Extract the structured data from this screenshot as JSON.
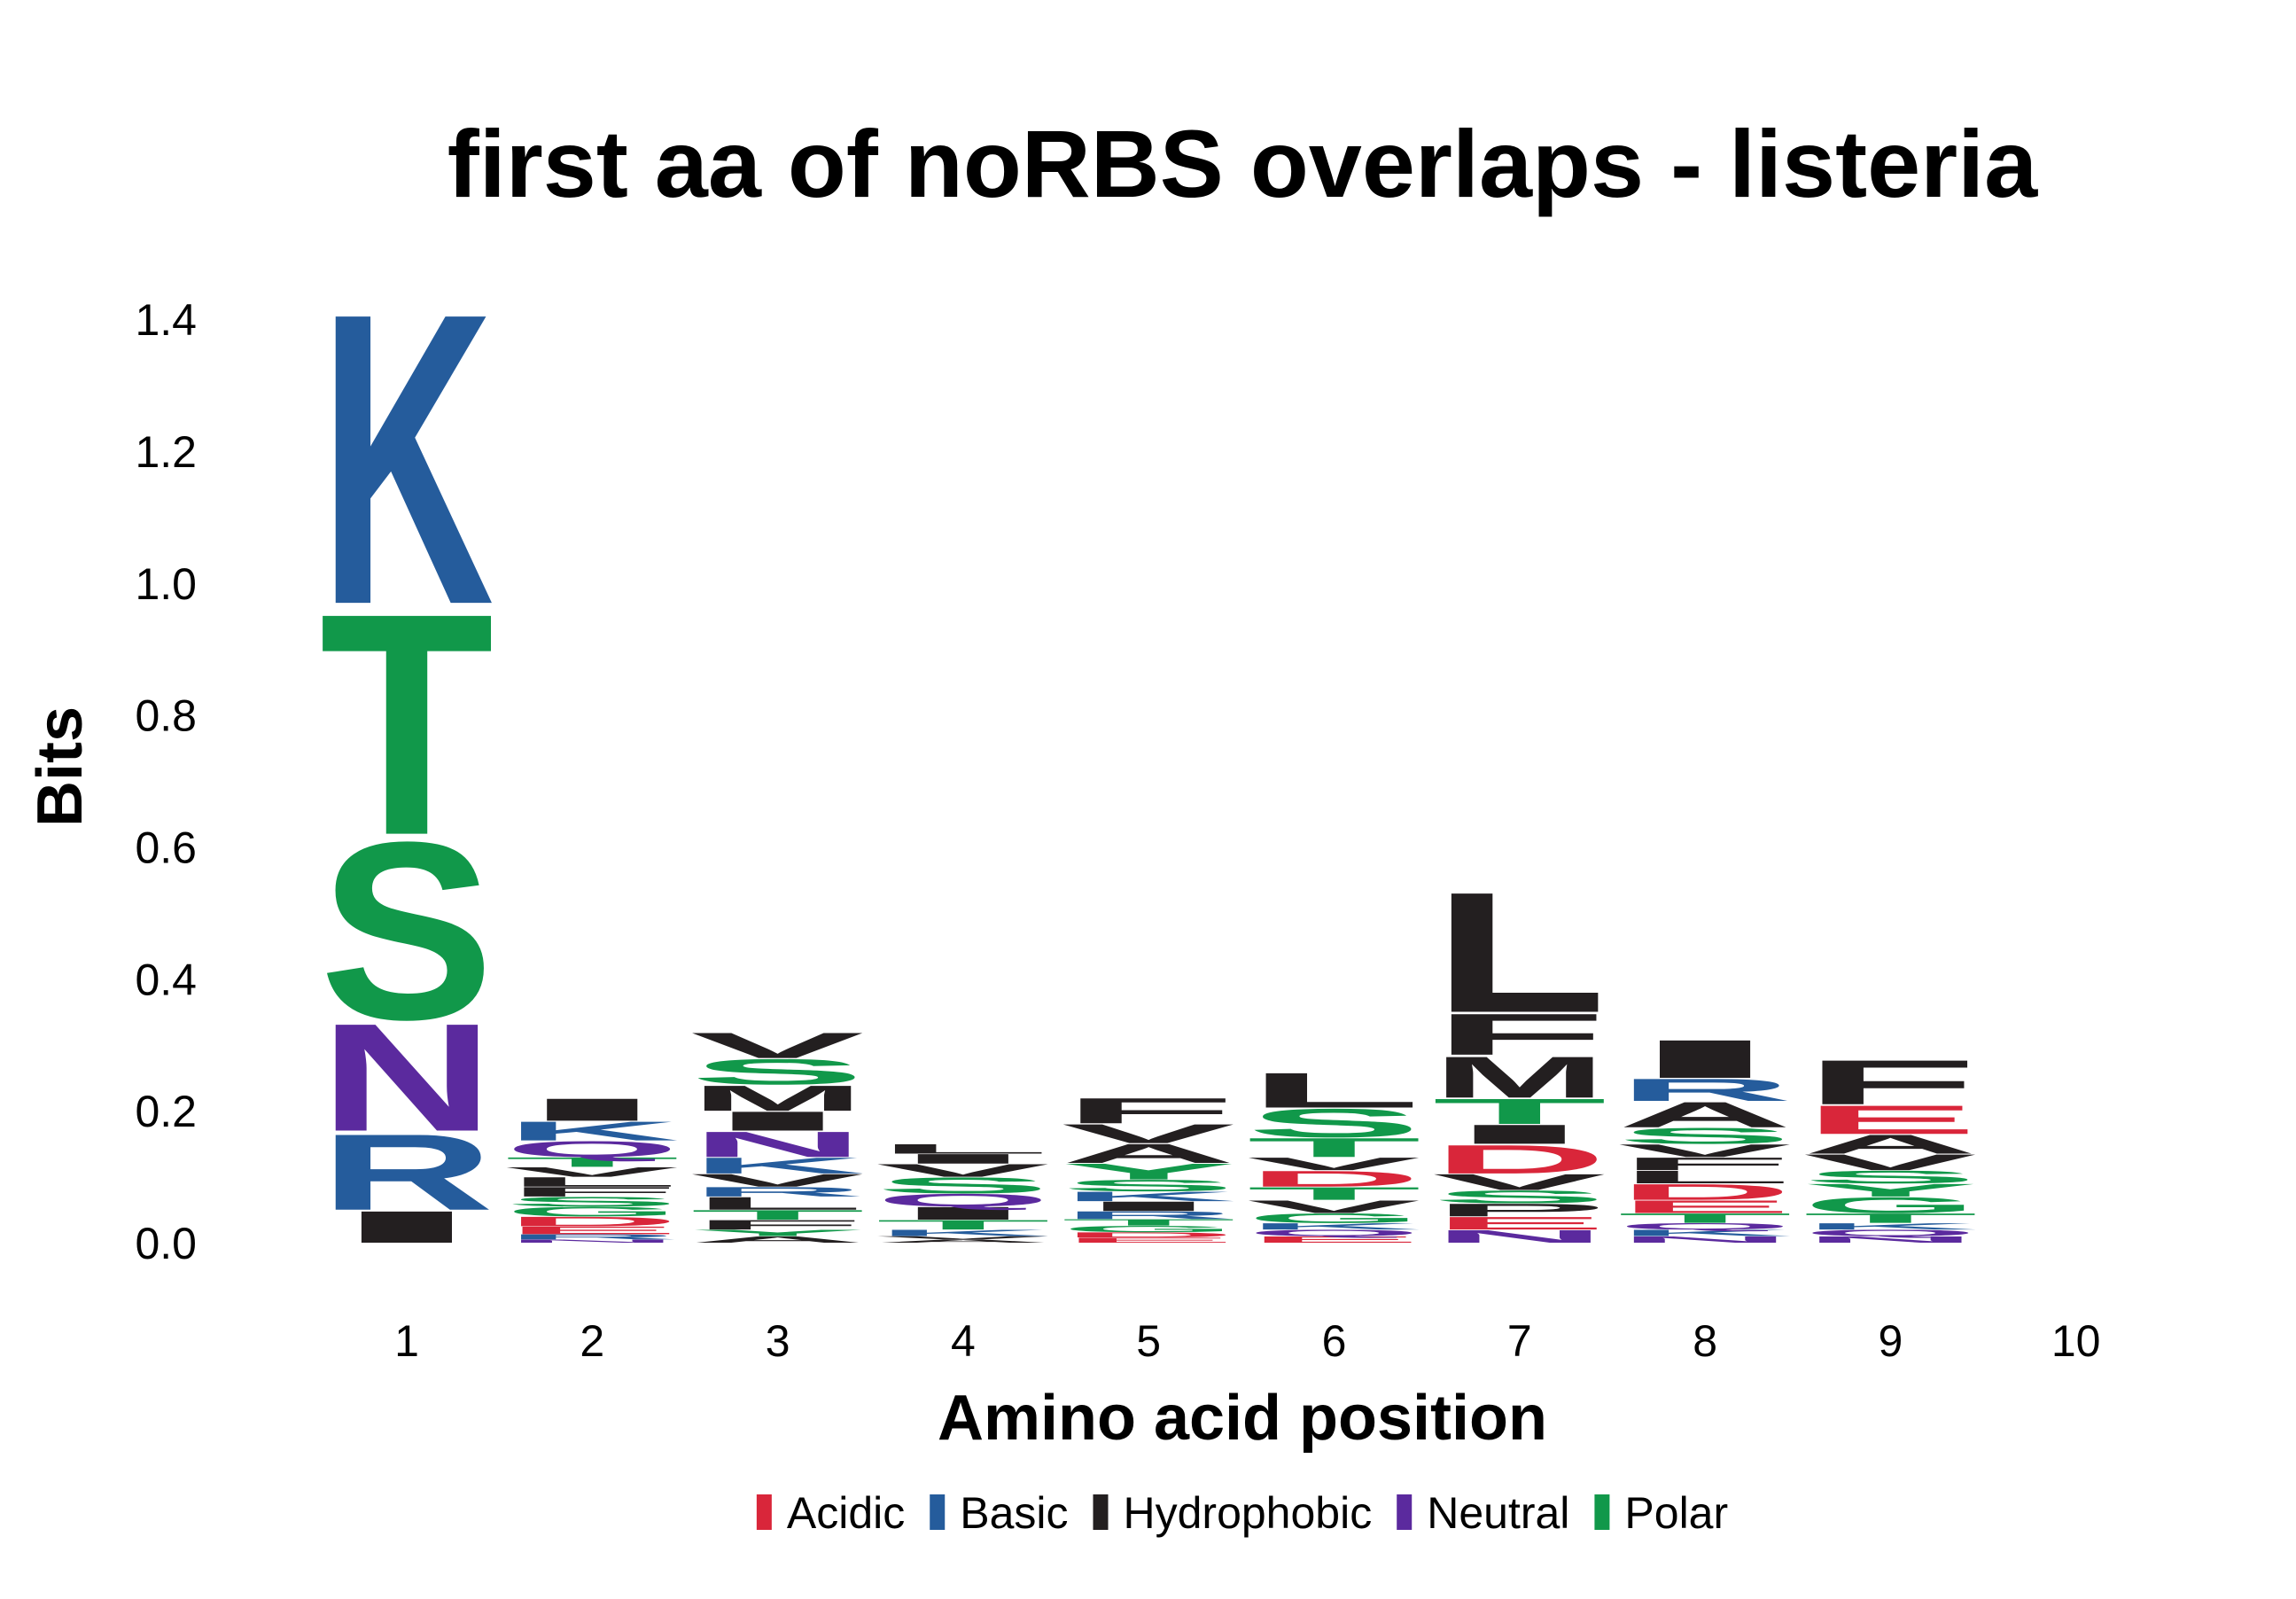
{
  "chart_data": {
    "type": "logo",
    "title": "first aa of noRBS overlaps - listeria",
    "x_label": "Amino acid position",
    "y_label": "Bits",
    "categories": [
      1,
      2,
      3,
      4,
      5,
      6,
      7,
      8,
      9,
      10
    ],
    "ylim": [
      0,
      1.45
    ],
    "yticks": [
      {
        "value": 0,
        "label": "0.0"
      },
      0.2,
      0.4,
      0.6,
      0.8,
      {
        "value": 1,
        "label": "1.0"
      },
      1.2,
      1.4
    ],
    "legend": [
      {
        "name": "Acidic",
        "color": "#d9263a"
      },
      {
        "name": "Basic",
        "color": "#255c9c"
      },
      {
        "name": "Hydrophobic",
        "color": "#231f20"
      },
      {
        "name": "Neutral",
        "color": "#5b2a9e"
      },
      {
        "name": "Polar",
        "color": "#11984a"
      }
    ],
    "stacks": [
      [
        {
          "letter": "I",
          "color": "#231f20",
          "value": 0.05
        },
        {
          "letter": "R",
          "color": "#255c9c",
          "value": 0.12
        },
        {
          "letter": "N",
          "color": "#5b2a9e",
          "value": 0.17
        },
        {
          "letter": "S",
          "color": "#11984a",
          "value": 0.28
        },
        {
          "letter": "T",
          "color": "#11984a",
          "value": 0.35
        },
        {
          "letter": "K",
          "color": "#255c9c",
          "value": 0.46
        }
      ],
      [
        {
          "letter": "N",
          "color": "#5b2a9e",
          "value": 0.005
        },
        {
          "letter": "R",
          "color": "#255c9c",
          "value": 0.008
        },
        {
          "letter": "E",
          "color": "#d9263a",
          "value": 0.012
        },
        {
          "letter": "D",
          "color": "#d9263a",
          "value": 0.015
        },
        {
          "letter": "G",
          "color": "#11984a",
          "value": 0.015
        },
        {
          "letter": "S",
          "color": "#11984a",
          "value": 0.015
        },
        {
          "letter": "F",
          "color": "#231f20",
          "value": 0.015
        },
        {
          "letter": "L",
          "color": "#231f20",
          "value": 0.015
        },
        {
          "letter": "V",
          "color": "#231f20",
          "value": 0.015
        },
        {
          "letter": "T",
          "color": "#11984a",
          "value": 0.015
        },
        {
          "letter": "Q",
          "color": "#5b2a9e",
          "value": 0.025
        },
        {
          "letter": "K",
          "color": "#255c9c",
          "value": 0.03
        },
        {
          "letter": "I",
          "color": "#231f20",
          "value": 0.035
        }
      ],
      [
        {
          "letter": "A",
          "color": "#231f20",
          "value": 0.01
        },
        {
          "letter": "Y",
          "color": "#11984a",
          "value": 0.01
        },
        {
          "letter": "F",
          "color": "#231f20",
          "value": 0.015
        },
        {
          "letter": "T",
          "color": "#11984a",
          "value": 0.015
        },
        {
          "letter": "L",
          "color": "#231f20",
          "value": 0.02
        },
        {
          "letter": "R",
          "color": "#255c9c",
          "value": 0.015
        },
        {
          "letter": "V",
          "color": "#231f20",
          "value": 0.02
        },
        {
          "letter": "K",
          "color": "#255c9c",
          "value": 0.025
        },
        {
          "letter": "N",
          "color": "#5b2a9e",
          "value": 0.04
        },
        {
          "letter": "I",
          "color": "#231f20",
          "value": 0.03
        },
        {
          "letter": "M",
          "color": "#231f20",
          "value": 0.04
        },
        {
          "letter": "S",
          "color": "#11984a",
          "value": 0.04
        },
        {
          "letter": "V",
          "color": "#231f20",
          "value": 0.04
        }
      ],
      [
        {
          "letter": "A",
          "color": "#231f20",
          "value": 0.005
        },
        {
          "letter": "V",
          "color": "#231f20",
          "value": 0.005
        },
        {
          "letter": "K",
          "color": "#255c9c",
          "value": 0.01
        },
        {
          "letter": "T",
          "color": "#11984a",
          "value": 0.015
        },
        {
          "letter": "I",
          "color": "#231f20",
          "value": 0.02
        },
        {
          "letter": "Q",
          "color": "#5b2a9e",
          "value": 0.02
        },
        {
          "letter": "S",
          "color": "#11984a",
          "value": 0.025
        },
        {
          "letter": "V",
          "color": "#231f20",
          "value": 0.02
        },
        {
          "letter": "I",
          "color": "#231f20",
          "value": 0.015
        },
        {
          "letter": "L",
          "color": "#231f20",
          "value": 0.015
        }
      ],
      [
        {
          "letter": "E",
          "color": "#d9263a",
          "value": 0.008
        },
        {
          "letter": "D",
          "color": "#d9263a",
          "value": 0.008
        },
        {
          "letter": "G",
          "color": "#11984a",
          "value": 0.01
        },
        {
          "letter": "T",
          "color": "#11984a",
          "value": 0.01
        },
        {
          "letter": "R",
          "color": "#255c9c",
          "value": 0.012
        },
        {
          "letter": "I",
          "color": "#231f20",
          "value": 0.015
        },
        {
          "letter": "K",
          "color": "#255c9c",
          "value": 0.015
        },
        {
          "letter": "S",
          "color": "#11984a",
          "value": 0.018
        },
        {
          "letter": "Y",
          "color": "#11984a",
          "value": 0.025
        },
        {
          "letter": "A",
          "color": "#231f20",
          "value": 0.03
        },
        {
          "letter": "V",
          "color": "#231f20",
          "value": 0.03
        },
        {
          "letter": "F",
          "color": "#231f20",
          "value": 0.04
        }
      ],
      [
        {
          "letter": "E",
          "color": "#d9263a",
          "value": 0.01
        },
        {
          "letter": "Q",
          "color": "#5b2a9e",
          "value": 0.01
        },
        {
          "letter": "K",
          "color": "#255c9c",
          "value": 0.01
        },
        {
          "letter": "G",
          "color": "#11984a",
          "value": 0.015
        },
        {
          "letter": "V",
          "color": "#231f20",
          "value": 0.02
        },
        {
          "letter": "T",
          "color": "#11984a",
          "value": 0.02
        },
        {
          "letter": "D",
          "color": "#d9263a",
          "value": 0.025
        },
        {
          "letter": "V",
          "color": "#231f20",
          "value": 0.02
        },
        {
          "letter": "T",
          "color": "#11984a",
          "value": 0.03
        },
        {
          "letter": "S",
          "color": "#11984a",
          "value": 0.045
        },
        {
          "letter": "L",
          "color": "#231f20",
          "value": 0.055
        }
      ],
      [
        {
          "letter": "N",
          "color": "#5b2a9e",
          "value": 0.02
        },
        {
          "letter": "E",
          "color": "#d9263a",
          "value": 0.02
        },
        {
          "letter": "P",
          "color": "#231f20",
          "value": 0.02
        },
        {
          "letter": "S",
          "color": "#11984a",
          "value": 0.02
        },
        {
          "letter": "V",
          "color": "#231f20",
          "value": 0.025
        },
        {
          "letter": "D",
          "color": "#d9263a",
          "value": 0.045
        },
        {
          "letter": "I",
          "color": "#231f20",
          "value": 0.03
        },
        {
          "letter": "T",
          "color": "#11984a",
          "value": 0.04
        },
        {
          "letter": "M",
          "color": "#231f20",
          "value": 0.065
        },
        {
          "letter": "F",
          "color": "#231f20",
          "value": 0.065
        },
        {
          "letter": "L",
          "color": "#231f20",
          "value": 0.19
        }
      ],
      [
        {
          "letter": "N",
          "color": "#5b2a9e",
          "value": 0.01
        },
        {
          "letter": "K",
          "color": "#255c9c",
          "value": 0.01
        },
        {
          "letter": "Q",
          "color": "#5b2a9e",
          "value": 0.01
        },
        {
          "letter": "T",
          "color": "#11984a",
          "value": 0.015
        },
        {
          "letter": "E",
          "color": "#d9263a",
          "value": 0.02
        },
        {
          "letter": "D",
          "color": "#d9263a",
          "value": 0.025
        },
        {
          "letter": "L",
          "color": "#231f20",
          "value": 0.02
        },
        {
          "letter": "F",
          "color": "#231f20",
          "value": 0.02
        },
        {
          "letter": "V",
          "color": "#231f20",
          "value": 0.02
        },
        {
          "letter": "S",
          "color": "#11984a",
          "value": 0.025
        },
        {
          "letter": "A",
          "color": "#231f20",
          "value": 0.04
        },
        {
          "letter": "R",
          "color": "#255c9c",
          "value": 0.035
        },
        {
          "letter": "I",
          "color": "#231f20",
          "value": 0.06
        }
      ],
      [
        {
          "letter": "N",
          "color": "#5b2a9e",
          "value": 0.01
        },
        {
          "letter": "Q",
          "color": "#5b2a9e",
          "value": 0.01
        },
        {
          "letter": "K",
          "color": "#255c9c",
          "value": 0.01
        },
        {
          "letter": "T",
          "color": "#11984a",
          "value": 0.015
        },
        {
          "letter": "G",
          "color": "#11984a",
          "value": 0.025
        },
        {
          "letter": "Y",
          "color": "#11984a",
          "value": 0.02
        },
        {
          "letter": "S",
          "color": "#11984a",
          "value": 0.02
        },
        {
          "letter": "V",
          "color": "#231f20",
          "value": 0.025
        },
        {
          "letter": "A",
          "color": "#231f20",
          "value": 0.03
        },
        {
          "letter": "E",
          "color": "#d9263a",
          "value": 0.045
        },
        {
          "letter": "F",
          "color": "#231f20",
          "value": 0.07
        }
      ],
      []
    ]
  }
}
